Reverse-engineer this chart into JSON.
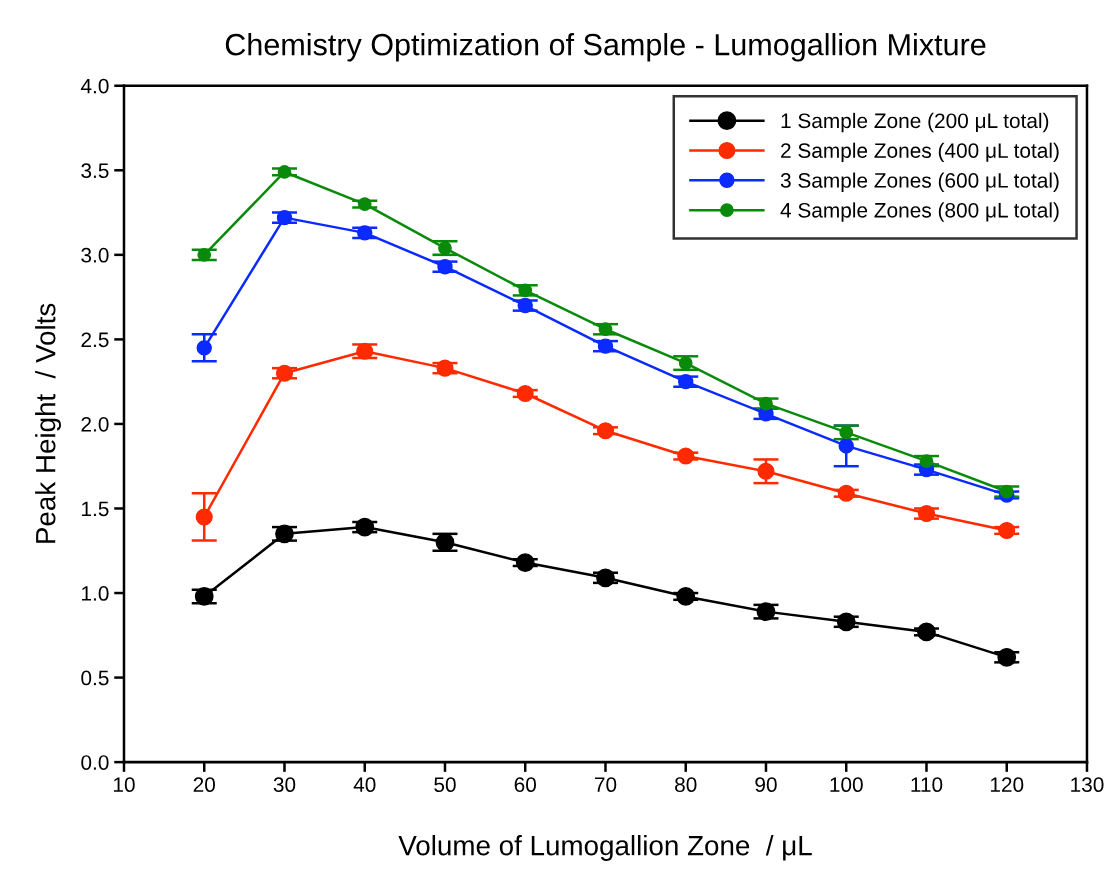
{
  "chart_data": {
    "type": "line",
    "title": "Chemistry Optimization of Sample - Lumogallion Mixture",
    "xlabel": "Volume of Lumogallion Zone  / μL",
    "ylabel": "Peak Height  / Volts",
    "x": [
      20,
      30,
      40,
      50,
      60,
      70,
      80,
      90,
      100,
      110,
      120
    ],
    "series": [
      {
        "name": "1 Sample Zone (200 μL total)",
        "color": "#000000",
        "values": [
          0.98,
          1.35,
          1.39,
          1.3,
          1.18,
          1.09,
          0.98,
          0.89,
          0.83,
          0.77,
          0.62
        ],
        "errors": [
          0.04,
          0.04,
          0.03,
          0.05,
          0.02,
          0.03,
          0.02,
          0.04,
          0.03,
          0.02,
          0.03
        ]
      },
      {
        "name": "2 Sample Zones (400 μL total)",
        "color": "#ff2a00",
        "values": [
          1.45,
          2.3,
          2.43,
          2.33,
          2.18,
          1.96,
          1.81,
          1.72,
          1.59,
          1.47,
          1.37
        ],
        "errors": [
          0.14,
          0.03,
          0.04,
          0.03,
          0.02,
          0.02,
          0.02,
          0.07,
          0.02,
          0.03,
          0.02
        ]
      },
      {
        "name": "3 Sample Zones (600 μL total)",
        "color": "#0a2aff",
        "values": [
          2.45,
          3.22,
          3.13,
          2.93,
          2.7,
          2.46,
          2.25,
          2.06,
          1.87,
          1.73,
          1.58
        ],
        "errors": [
          0.08,
          0.03,
          0.03,
          0.03,
          0.03,
          0.03,
          0.03,
          0.03,
          0.12,
          0.03,
          0.02
        ]
      },
      {
        "name": "4 Sample Zones (800 μL total)",
        "color": "#0a8a0a",
        "values": [
          3.0,
          3.49,
          3.3,
          3.04,
          2.79,
          2.56,
          2.36,
          2.12,
          1.95,
          1.78,
          1.6
        ],
        "errors": [
          0.03,
          0.02,
          0.02,
          0.04,
          0.03,
          0.03,
          0.04,
          0.03,
          0.04,
          0.03,
          0.03
        ]
      }
    ],
    "xlim": [
      10,
      130
    ],
    "xticks": [
      10,
      20,
      30,
      40,
      50,
      60,
      70,
      80,
      90,
      100,
      110,
      120,
      130
    ],
    "ylim": [
      0,
      4
    ],
    "yticks": [
      {
        "value": 0,
        "label": "0.0"
      },
      {
        "value": 0.5,
        "label": "0.5"
      },
      {
        "value": 1,
        "label": "1.0"
      },
      {
        "value": 1.5,
        "label": "1.5"
      },
      {
        "value": 2,
        "label": "2.0"
      },
      {
        "value": 2.5,
        "label": "2.5"
      },
      {
        "value": 3,
        "label": "3.0"
      },
      {
        "value": 3.5,
        "label": "3.5"
      },
      {
        "value": 4,
        "label": "4.0"
      }
    ],
    "marker": "circle",
    "line_style": "solid",
    "grid": false,
    "legend": "top right"
  }
}
